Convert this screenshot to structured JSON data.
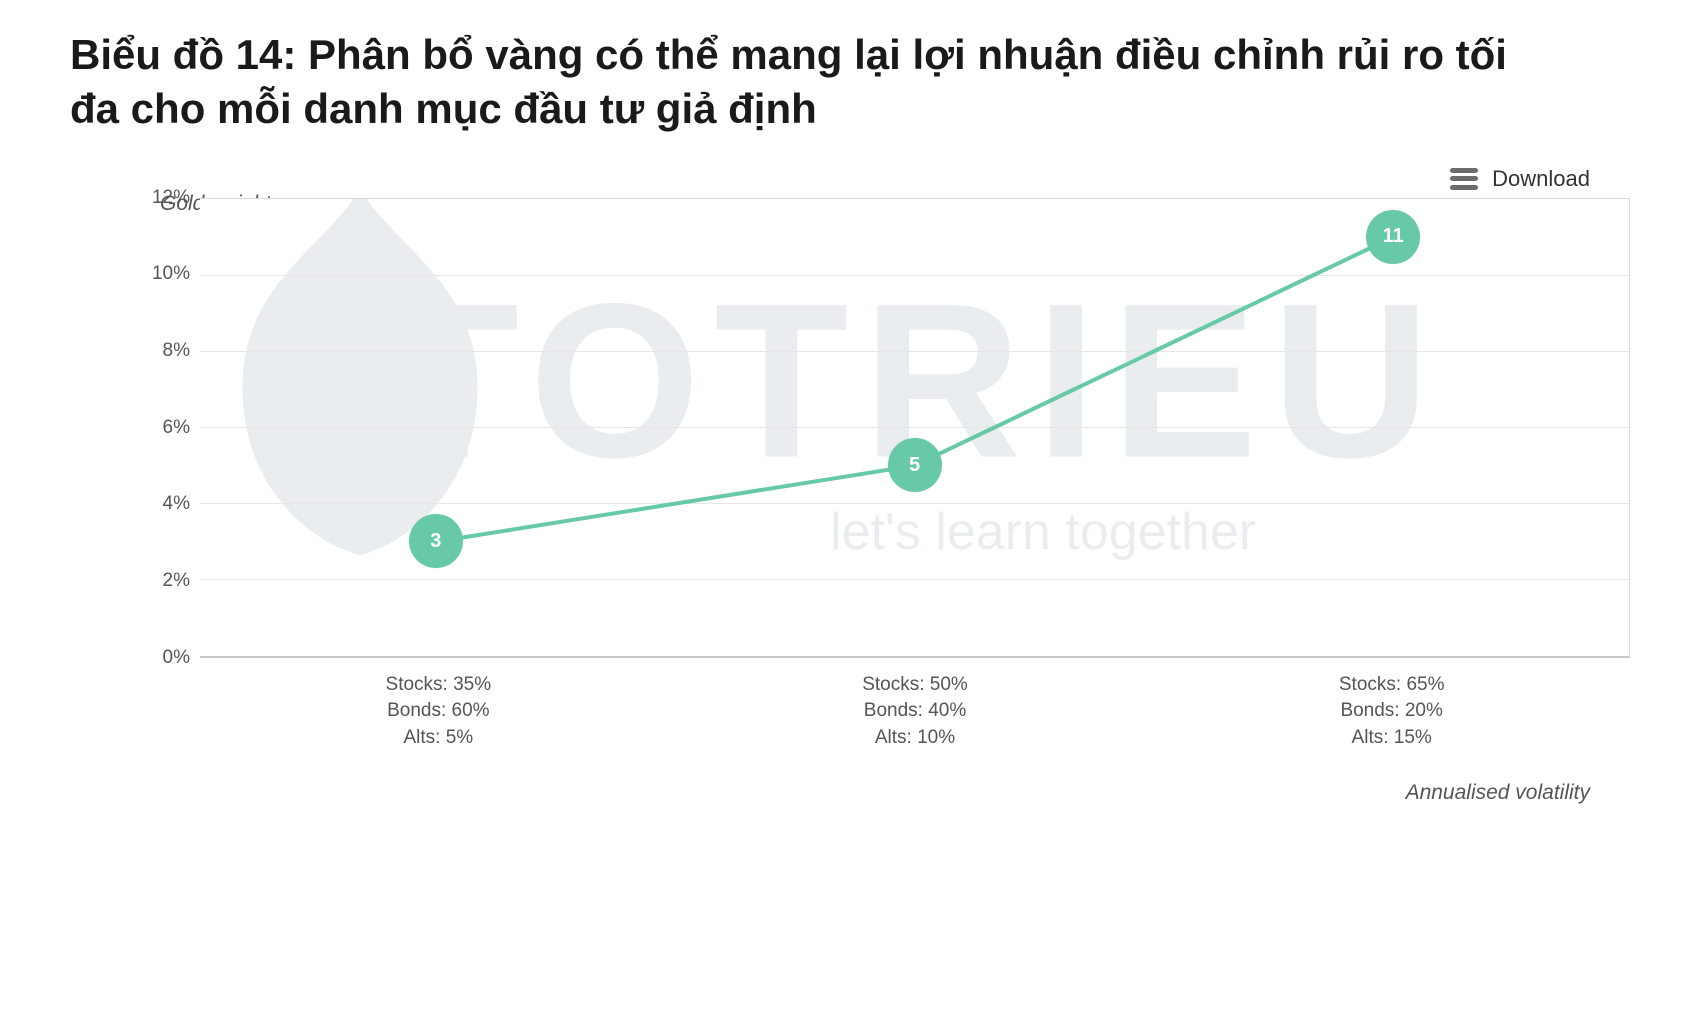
{
  "title": "Biểu đồ 14: Phân bổ vàng có thể mang lại lợi nhuận điều chỉnh rủi ro tối đa cho mỗi danh mục đầu tư giả định",
  "download_label": "Download",
  "watermark_main": "TOTRIEU",
  "watermark_sub": "let's learn together",
  "chart": {
    "type": "line",
    "ylabel": "Gold weight",
    "xlabel": "Annualised volatility",
    "ylim": [
      0,
      12
    ],
    "ytick_step": 2,
    "yticks": [
      "0%",
      "2%",
      "4%",
      "6%",
      "8%",
      "10%",
      "12%"
    ],
    "grid_color": "#e6e6e6",
    "axis_color": "#c8c8c8",
    "background_color": "#ffffff",
    "line_color": "#67c9a5",
    "line_width": 4,
    "marker_fill": "#67c9a5",
    "marker_text_color": "#ffffff",
    "marker_radius": 27,
    "marker_fontsize": 20,
    "tick_fontsize": 19,
    "tick_color": "#555555",
    "label_fontsize": 21,
    "label_fontstyle": "italic",
    "categories": [
      {
        "lines": [
          "Stocks: 35%",
          "Bonds: 60%",
          "Alts: 5%"
        ]
      },
      {
        "lines": [
          "Stocks: 50%",
          "Bonds: 40%",
          "Alts: 10%"
        ]
      },
      {
        "lines": [
          "Stocks: 65%",
          "Bonds: 20%",
          "Alts: 15%"
        ]
      }
    ],
    "values": [
      3,
      5,
      11
    ],
    "value_labels": [
      "3",
      "5",
      "11"
    ],
    "x_positions_pct": [
      16.5,
      50,
      83.5
    ]
  }
}
